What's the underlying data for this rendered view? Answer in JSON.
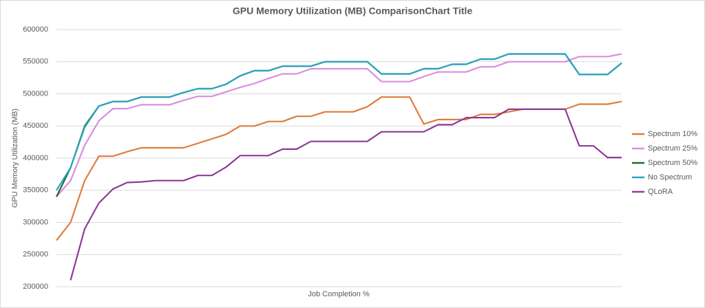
{
  "chart_data": {
    "type": "line",
    "title": "GPU Memory Utilization (MB) ComparisonChart Title",
    "x_label": "Job Completion %",
    "y_label": "GPU Memory Utilization (MB)",
    "categories": [
      null,
      null,
      null,
      null,
      null,
      null,
      null,
      null,
      null,
      null,
      null,
      null,
      null,
      null,
      null,
      null,
      null,
      null,
      null,
      null,
      null,
      null,
      null,
      null,
      null,
      null,
      null,
      null,
      null,
      null,
      null,
      null,
      null,
      null,
      null,
      null,
      null,
      null,
      null,
      null,
      null
    ],
    "ylim": [
      200000,
      600000
    ],
    "yticks": [
      200000,
      250000,
      300000,
      350000,
      400000,
      450000,
      500000,
      550000,
      600000
    ],
    "grid": true,
    "legend": "right",
    "series": [
      {
        "name": "Spectrum 10%",
        "color": "#e07b39",
        "values": [
          272000,
          300000,
          365000,
          403000,
          403000,
          410000,
          416000,
          416000,
          416000,
          416000,
          423000,
          430000,
          437000,
          450000,
          450000,
          457000,
          457000,
          465000,
          465000,
          472000,
          472000,
          472000,
          480000,
          495000,
          495000,
          495000,
          453000,
          460000,
          460000,
          460000,
          468000,
          468000,
          472000,
          476000,
          476000,
          476000,
          476000,
          484000,
          484000,
          484000,
          488000
        ]
      },
      {
        "name": "Spectrum 25%",
        "color": "#d98ee0",
        "values": [
          340000,
          365000,
          420000,
          458000,
          477000,
          477000,
          483000,
          483000,
          483000,
          490000,
          496000,
          496000,
          503000,
          510000,
          516000,
          524000,
          531000,
          531000,
          539000,
          539000,
          539000,
          539000,
          539000,
          519000,
          519000,
          519000,
          527000,
          534000,
          534000,
          534000,
          542000,
          542000,
          550000,
          550000,
          550000,
          550000,
          550000,
          558000,
          558000,
          558000,
          562000
        ]
      },
      {
        "name": "Spectrum 50%",
        "color": "#1e6b2e",
        "values": [
          340000,
          385000,
          450000,
          481000,
          488000,
          488000,
          495000,
          495000,
          495000,
          502000,
          508000,
          508000,
          515000,
          528000,
          536000,
          536000,
          543000,
          543000,
          543000,
          550000,
          550000,
          550000,
          550000,
          531000,
          531000,
          531000,
          539000,
          539000,
          546000,
          546000,
          554000,
          554000,
          562000,
          562000,
          562000,
          562000,
          562000,
          530000,
          530000,
          530000,
          548000
        ]
      },
      {
        "name": "No Spectrum",
        "color": "#2aa3c4",
        "values": [
          350000,
          385000,
          448000,
          481000,
          488000,
          488000,
          495000,
          495000,
          495000,
          502000,
          508000,
          508000,
          515000,
          528000,
          536000,
          536000,
          543000,
          543000,
          543000,
          550000,
          550000,
          550000,
          550000,
          531000,
          531000,
          531000,
          539000,
          539000,
          546000,
          546000,
          554000,
          554000,
          562000,
          562000,
          562000,
          562000,
          562000,
          530000,
          530000,
          530000,
          548000
        ]
      },
      {
        "name": "QLoRA",
        "color": "#8e3a96",
        "values": [
          null,
          210000,
          290000,
          330000,
          352000,
          362000,
          363000,
          365000,
          365000,
          365000,
          373000,
          373000,
          386000,
          404000,
          404000,
          404000,
          414000,
          414000,
          426000,
          426000,
          426000,
          426000,
          426000,
          441000,
          441000,
          441000,
          441000,
          452000,
          452000,
          463000,
          463000,
          463000,
          476000,
          476000,
          476000,
          476000,
          476000,
          419000,
          419000,
          401000,
          401000
        ]
      }
    ]
  }
}
